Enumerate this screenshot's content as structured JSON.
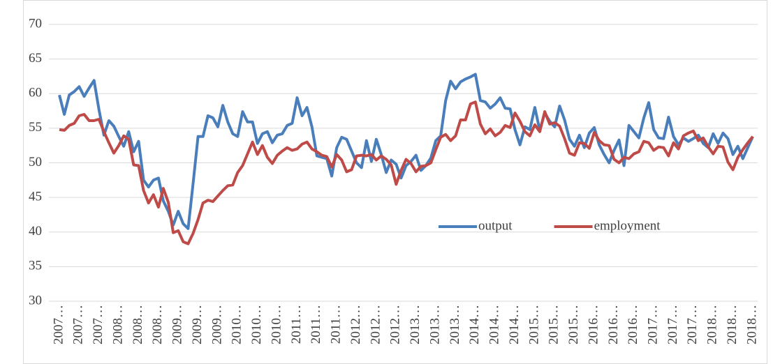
{
  "chart_data": {
    "type": "line",
    "categories": [
      "2007…",
      null,
      null,
      null,
      "2007…",
      null,
      null,
      null,
      "2007…",
      null,
      null,
      null,
      "2008…",
      null,
      null,
      null,
      "2008…",
      null,
      null,
      null,
      "2008…",
      null,
      null,
      null,
      "2009…",
      null,
      null,
      null,
      "2009…",
      null,
      null,
      null,
      "2009…",
      null,
      null,
      null,
      "2010…",
      null,
      null,
      null,
      "2010…",
      null,
      null,
      null,
      "2010…",
      null,
      null,
      null,
      "2011…",
      null,
      null,
      null,
      "2011…",
      null,
      null,
      null,
      "2011…",
      null,
      null,
      null,
      "2012…",
      null,
      null,
      null,
      "2012…",
      null,
      null,
      null,
      "2012…",
      null,
      null,
      null,
      "2013…",
      null,
      null,
      null,
      "2013…",
      null,
      null,
      null,
      "2013…",
      null,
      null,
      null,
      "2014…",
      null,
      null,
      null,
      "2014…",
      null,
      null,
      null,
      "2014…",
      null,
      null,
      null,
      "2015…",
      null,
      null,
      null,
      "2015…",
      null,
      null,
      null,
      "2015…",
      null,
      null,
      null,
      "2016…",
      null,
      null,
      null,
      "2016…",
      null,
      null,
      null,
      "2016…",
      null,
      null,
      null,
      "2017…",
      null,
      null,
      null,
      "2017…",
      null,
      null,
      null,
      "2017…",
      null,
      null,
      null,
      "2018…",
      null,
      null,
      null,
      "2018…",
      null,
      null,
      null,
      "2018…"
    ],
    "series": [
      {
        "name": "output",
        "color": "#4a7ebb",
        "values": [
          59.8,
          57,
          59.8,
          60.3,
          61,
          59.6,
          60.8,
          61.9,
          57.7,
          54,
          56.1,
          55.3,
          53.8,
          52.4,
          54.5,
          51.6,
          53.1,
          47.5,
          46.5,
          47.5,
          47.8,
          44.5,
          43,
          41,
          43,
          41.2,
          40.5,
          47,
          53.8,
          53.8,
          56.8,
          56.5,
          55.2,
          58.3,
          55.9,
          54.2,
          53.8,
          57.4,
          55.9,
          55.9,
          52.8,
          54.2,
          54.5,
          52.9,
          54,
          54.2,
          55.4,
          55.7,
          59.4,
          56.8,
          58,
          55.2,
          51,
          50.8,
          50.6,
          48.1,
          52.2,
          53.7,
          53.4,
          51.7,
          50,
          49.3,
          53.2,
          50.2,
          53.4,
          51.2,
          48.6,
          50.4,
          49.8,
          47.8,
          49.6,
          50.2,
          51.1,
          48.9,
          49.6,
          50.7,
          53.2,
          53.9,
          59,
          61.8,
          60.7,
          61.7,
          62.1,
          62.4,
          62.8,
          59,
          58.8,
          57.9,
          58.5,
          59.4,
          57.9,
          57.8,
          54.8,
          52.6,
          55.2,
          54.8,
          58,
          54.7,
          57.2,
          56,
          55.2,
          58.2,
          56.2,
          53.4,
          52.4,
          54,
          52.2,
          54.3,
          55.1,
          52.6,
          51.2,
          50,
          51.8,
          53.3,
          49.6,
          55.4,
          54.5,
          53.6,
          56.5,
          58.7,
          54.8,
          53.6,
          53.5,
          56.6,
          53.8,
          52.6,
          53.6,
          53.1,
          53.5,
          54,
          52.8,
          52.2,
          54.2,
          52.8,
          54.3,
          53.5,
          51.2,
          52.4,
          50.6,
          52.2,
          53.8
        ]
      },
      {
        "name": "employment",
        "color": "#be4b48",
        "values": [
          54.8,
          54.7,
          55.4,
          55.7,
          56.8,
          57,
          56.1,
          56.1,
          56.3,
          54.5,
          52.9,
          51.4,
          52.5,
          53.9,
          53.4,
          49.7,
          49.6,
          46,
          44.2,
          45.4,
          43.6,
          46.3,
          44.3,
          39.9,
          40.2,
          38.6,
          38.3,
          39.8,
          41.8,
          44.2,
          44.6,
          44.4,
          45.2,
          46,
          46.7,
          46.8,
          48.6,
          49.6,
          51.3,
          53,
          51.2,
          52.5,
          50.8,
          49.9,
          51.1,
          51.7,
          52.2,
          51.8,
          52,
          52.7,
          53,
          52,
          51.6,
          51.1,
          50.9,
          49.4,
          51.2,
          50.4,
          48.7,
          49,
          51,
          51.1,
          51,
          51.2,
          50.4,
          51,
          50.5,
          49.7,
          46.9,
          48.9,
          50.5,
          49.9,
          48.7,
          49.5,
          49.6,
          50,
          51.9,
          53.7,
          54.1,
          53.2,
          53.9,
          56.2,
          56.2,
          58.5,
          58.8,
          55.6,
          54.2,
          54.9,
          53.9,
          54.4,
          55.4,
          55.1,
          57.2,
          56,
          54.5,
          53.9,
          55.5,
          54.5,
          57.4,
          55.6,
          55.8,
          55.3,
          53.5,
          51.4,
          51.1,
          52.9,
          52.8,
          52.1,
          54.4,
          53.2,
          52.6,
          52.5,
          50.5,
          50,
          50.8,
          50.6,
          51.3,
          51.6,
          53.1,
          52.9,
          51.8,
          52.3,
          52.2,
          51,
          52.9,
          52,
          53.9,
          54.3,
          54.6,
          53.2,
          53.6,
          52.3,
          51.3,
          52.4,
          52.3,
          50.1,
          49,
          50.8,
          51.9,
          52.9,
          53.8
        ]
      }
    ],
    "ylim": [
      30,
      70
    ],
    "yticks": [
      30,
      35,
      40,
      45,
      50,
      55,
      60,
      65,
      70
    ],
    "grid": true,
    "legend": "center-right"
  }
}
